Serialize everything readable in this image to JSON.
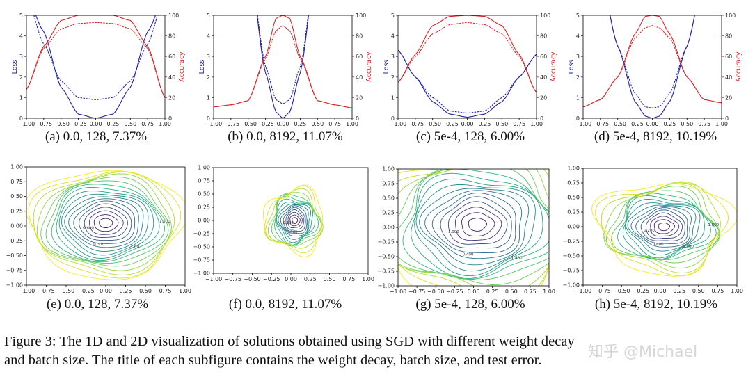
{
  "figure": {
    "caption_line1": "Figure 3: The 1D and 2D visualization of solutions obtained using SGD with different weight decay",
    "caption_line2": "and batch size. The title of each subfigure contains the weight decay, batch size, and test error.",
    "watermark": "知乎 @Michael",
    "colors": {
      "loss": "#1f1fa8",
      "accuracy": "#d62728",
      "axes": "#000000"
    }
  },
  "chart_data": [
    {
      "type": "line",
      "panel": "a",
      "title": "(a) 0.0, 128, 7.37%",
      "xlabel": "",
      "ylabel": "Loss",
      "ylabel_right": "Accuracy",
      "xlim": [
        -1,
        1
      ],
      "ylim": [
        0,
        5
      ],
      "ylim_right": [
        0,
        100
      ],
      "x_ticks": [
        "−1.00",
        "−0.75",
        "−0.50",
        "−0.25",
        "0.00",
        "0.25",
        "0.50",
        "0.75",
        "1.00"
      ],
      "y_ticks": [
        "0",
        "1",
        "2",
        "3",
        "4",
        "5"
      ],
      "y_ticks_right": [
        "0",
        "20",
        "40",
        "60",
        "80",
        "100"
      ],
      "x": [
        -1.0,
        -0.75,
        -0.5,
        -0.25,
        0.0,
        0.25,
        0.5,
        0.75,
        1.0
      ],
      "series": [
        {
          "values": [
            6.0,
            4.2,
            1.5,
            0.2,
            0.0,
            0.2,
            1.5,
            4.2,
            6.0
          ]
        },
        {
          "values": [
            6.0,
            3.6,
            1.8,
            1.0,
            0.9,
            1.0,
            1.8,
            3.6,
            6.0
          ]
        },
        {
          "values": [
            28,
            70,
            95,
            100,
            100,
            100,
            95,
            70,
            20
          ],
          "axis": "right"
        },
        {
          "values": [
            28,
            68,
            87,
            92,
            93,
            92,
            87,
            68,
            20
          ],
          "axis": "right"
        }
      ]
    },
    {
      "type": "line",
      "panel": "b",
      "title": "(b) 0.0, 8192, 11.07%",
      "xlabel": "",
      "ylabel": "Loss",
      "ylabel_right": "Accuracy",
      "xlim": [
        -1,
        1
      ],
      "ylim": [
        0,
        5
      ],
      "ylim_right": [
        0,
        100
      ],
      "x_ticks": [
        "−1.00",
        "−0.75",
        "−0.50",
        "−0.25",
        "0.00",
        "0.25",
        "0.50",
        "0.75",
        "1.00"
      ],
      "y_ticks": [
        "0",
        "1",
        "2",
        "3",
        "4",
        "5"
      ],
      "y_ticks_right": [
        "0",
        "20",
        "40",
        "60",
        "80",
        "100"
      ],
      "x": [
        -1.0,
        -0.75,
        -0.5,
        -0.25,
        -0.1,
        0.0,
        0.1,
        0.25,
        0.5,
        0.75,
        1.0
      ],
      "series": [
        {
          "values": [
            8.0,
            8.0,
            8.0,
            2.2,
            0.3,
            0.0,
            0.3,
            2.2,
            8.0,
            8.0,
            8.0
          ]
        },
        {
          "values": [
            8.0,
            8.0,
            8.0,
            2.5,
            0.9,
            0.7,
            0.9,
            2.5,
            8.0,
            8.0,
            8.0
          ]
        },
        {
          "values": [
            11,
            13,
            17,
            60,
            97,
            100,
            97,
            60,
            17,
            13,
            10
          ],
          "axis": "right"
        },
        {
          "values": [
            11,
            13,
            17,
            58,
            85,
            90,
            85,
            58,
            17,
            13,
            10
          ],
          "axis": "right"
        }
      ]
    },
    {
      "type": "line",
      "panel": "c",
      "title": "(c) 5e-4, 128, 6.00%",
      "xlabel": "",
      "ylabel": "Loss",
      "ylabel_right": "Accuracy",
      "xlim": [
        -1,
        1
      ],
      "ylim": [
        0,
        5
      ],
      "ylim_right": [
        0,
        100
      ],
      "x_ticks": [
        "−1.00",
        "−0.75",
        "−0.50",
        "−0.25",
        "0.00",
        "0.25",
        "0.50",
        "0.75",
        "1.00"
      ],
      "y_ticks": [
        "0",
        "1",
        "2",
        "3",
        "4",
        "5"
      ],
      "y_ticks_right": [
        "0",
        "20",
        "40",
        "60",
        "80",
        "100"
      ],
      "x": [
        -1.0,
        -0.75,
        -0.5,
        -0.25,
        0.0,
        0.25,
        0.5,
        0.75,
        1.0
      ],
      "series": [
        {
          "values": [
            3.3,
            2.0,
            0.8,
            0.2,
            0.05,
            0.2,
            0.8,
            2.0,
            3.1
          ]
        },
        {
          "values": [
            3.3,
            2.0,
            1.0,
            0.35,
            0.25,
            0.35,
            1.0,
            2.0,
            3.1
          ]
        },
        {
          "values": [
            35,
            62,
            90,
            99,
            100,
            99,
            90,
            62,
            25
          ],
          "axis": "right"
        },
        {
          "values": [
            35,
            60,
            82,
            91,
            93,
            91,
            82,
            60,
            25
          ],
          "axis": "right"
        }
      ]
    },
    {
      "type": "line",
      "panel": "d",
      "title": "(d) 5e-4, 8192, 10.19%",
      "xlabel": "",
      "ylabel": "Loss",
      "ylabel_right": "Accuracy",
      "xlim": [
        -1,
        1
      ],
      "ylim": [
        0,
        5
      ],
      "ylim_right": [
        0,
        100
      ],
      "x_ticks": [
        "−1.00",
        "−0.75",
        "−0.50",
        "−0.25",
        "0.00",
        "0.25",
        "0.50",
        "0.75",
        "1.00"
      ],
      "y_ticks": [
        "0",
        "1",
        "2",
        "3",
        "4",
        "5"
      ],
      "y_ticks_right": [
        "0",
        "20",
        "40",
        "60",
        "80",
        "100"
      ],
      "x": [
        -1.0,
        -0.75,
        -0.5,
        -0.25,
        -0.1,
        0.0,
        0.1,
        0.25,
        0.5,
        0.75,
        1.0
      ],
      "series": [
        {
          "values": [
            8.0,
            7.0,
            3.5,
            0.8,
            0.1,
            0.0,
            0.1,
            0.8,
            3.5,
            7.0,
            8.0
          ]
        },
        {
          "values": [
            8.0,
            7.0,
            3.5,
            1.2,
            0.55,
            0.5,
            0.55,
            1.2,
            3.5,
            7.0,
            8.0
          ]
        },
        {
          "values": [
            11,
            18,
            40,
            82,
            99,
            100,
            99,
            82,
            40,
            18,
            15
          ],
          "axis": "right"
        },
        {
          "values": [
            11,
            18,
            40,
            78,
            88,
            90,
            88,
            78,
            40,
            18,
            15
          ],
          "axis": "right"
        }
      ]
    },
    {
      "type": "contour",
      "panel": "e",
      "title": "(e) 0.0, 128, 7.37%",
      "xlim": [
        -1,
        1
      ],
      "ylim": [
        -1,
        1
      ],
      "x_ticks": [
        "−1.00",
        "−0.75",
        "−0.50",
        "−0.25",
        "0.00",
        "0.25",
        "0.50",
        "0.75",
        "1.00"
      ],
      "y_ticks": [
        "−1.00",
        "−0.75",
        "−0.50",
        "−0.25",
        "0.00",
        "0.25",
        "0.50",
        "0.75",
        "1.00"
      ],
      "center": [
        0.0,
        0.05
      ],
      "extent": [
        0.98,
        0.92
      ],
      "levels": 18,
      "wobble": 0.05,
      "clip": false,
      "labels": [
        "0.600",
        "0.300",
        "1.00",
        "1.500"
      ]
    },
    {
      "type": "contour",
      "panel": "f",
      "title": "(f) 0.0, 8192, 11.07%",
      "xlim": [
        -1,
        1
      ],
      "ylim": [
        -1,
        1
      ],
      "x_ticks": [
        "−1.00",
        "−0.75",
        "−0.50",
        "−0.25",
        "0.00",
        "0.25",
        "0.50",
        "0.75",
        "1.00"
      ],
      "y_ticks": [
        "−1.00",
        "−0.75",
        "−0.50",
        "−0.25",
        "0.00",
        "0.25",
        "0.50",
        "0.75",
        "1.00"
      ],
      "center": [
        0.05,
        0.0
      ],
      "extent": [
        0.38,
        0.6
      ],
      "levels": 16,
      "wobble": 0.1,
      "clip": false,
      "labels": [
        "0.100",
        "0.300"
      ]
    },
    {
      "type": "contour",
      "panel": "g",
      "title": "(g) 5e-4, 128, 6.00%",
      "xlim": [
        -1,
        1
      ],
      "ylim": [
        -1,
        1
      ],
      "x_ticks": [
        "−1.00",
        "−0.75",
        "−0.50",
        "−0.25",
        "0.00",
        "0.25",
        "0.50",
        "0.75",
        "1.00"
      ],
      "y_ticks": [
        "−1.00",
        "−0.75",
        "−0.50",
        "−0.25",
        "0.00",
        "0.25",
        "0.50",
        "0.75",
        "1.00"
      ],
      "center": [
        0.05,
        0.05
      ],
      "extent": [
        1.4,
        1.3
      ],
      "levels": 18,
      "wobble": 0.08,
      "clip": true,
      "labels": [
        "1.000",
        "0.400",
        "1.400",
        "2.200",
        "3.000"
      ]
    },
    {
      "type": "contour",
      "panel": "h",
      "title": "(h) 5e-4, 8192, 10.19%",
      "xlim": [
        -1,
        1
      ],
      "ylim": [
        -1,
        1
      ],
      "x_ticks": [
        "−1.00",
        "−0.75",
        "−0.50",
        "−0.25",
        "0.00",
        "0.25",
        "0.50",
        "0.75",
        "1.00"
      ],
      "y_ticks": [
        "−1.00",
        "−0.75",
        "−0.50",
        "−0.25",
        "0.00",
        "0.25",
        "0.50",
        "0.75",
        "1.00"
      ],
      "center": [
        0.05,
        0.0
      ],
      "extent": [
        0.85,
        0.78
      ],
      "levels": 18,
      "wobble": 0.09,
      "clip": false,
      "labels": [
        "0.200",
        "0.600",
        "1.000",
        "1.800"
      ]
    }
  ]
}
